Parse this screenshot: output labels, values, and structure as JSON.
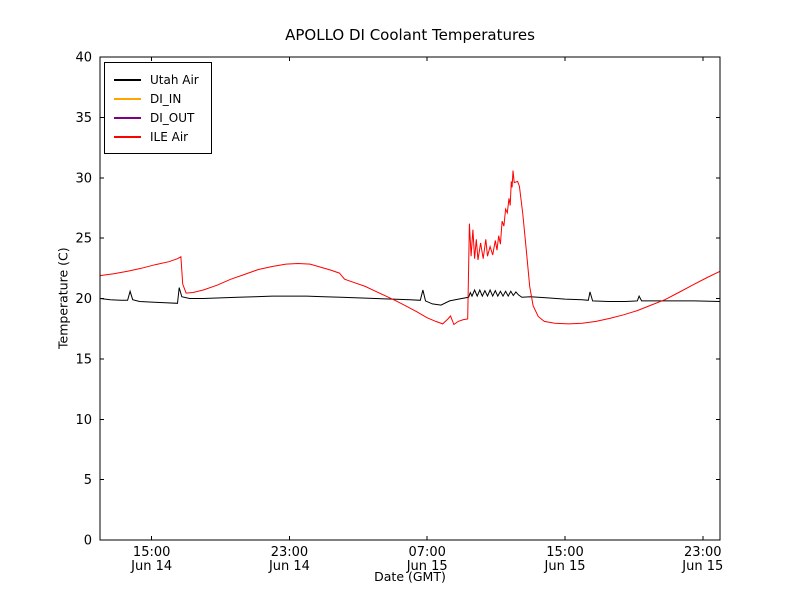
{
  "chart_data": {
    "type": "line",
    "title": "APOLLO DI Coolant Temperatures",
    "xlabel": "Date (GMT)",
    "ylabel": "Temperature (C)",
    "ylim": [
      0,
      40
    ],
    "xlim_hours": [
      0,
      36
    ],
    "grid": false,
    "legend_position": "upper left",
    "y_ticks": [
      0,
      5,
      10,
      15,
      20,
      25,
      30,
      35,
      40
    ],
    "x_ticks": [
      {
        "hours": 3,
        "time": "15:00",
        "date": "Jun 14"
      },
      {
        "hours": 11,
        "time": "23:00",
        "date": "Jun 14"
      },
      {
        "hours": 19,
        "time": "07:00",
        "date": "Jun 15"
      },
      {
        "hours": 27,
        "time": "15:00",
        "date": "Jun 15"
      },
      {
        "hours": 35,
        "time": "23:00",
        "date": "Jun 15"
      }
    ],
    "x_axis_note": "hours after Jun 14 12:00 GMT",
    "series": [
      {
        "name": "Utah Air",
        "color": "#000000",
        "points": [
          [
            0,
            20.0
          ],
          [
            0.6,
            19.9
          ],
          [
            1.2,
            19.85
          ],
          [
            1.6,
            19.85
          ],
          [
            1.75,
            20.6
          ],
          [
            1.9,
            19.9
          ],
          [
            2.3,
            19.75
          ],
          [
            3.0,
            19.7
          ],
          [
            3.8,
            19.65
          ],
          [
            4.5,
            19.6
          ],
          [
            4.6,
            20.9
          ],
          [
            4.75,
            20.15
          ],
          [
            5.2,
            20.0
          ],
          [
            6.0,
            20.0
          ],
          [
            7.0,
            20.05
          ],
          [
            8.0,
            20.1
          ],
          [
            9.0,
            20.15
          ],
          [
            10.0,
            20.2
          ],
          [
            11.0,
            20.2
          ],
          [
            12.0,
            20.2
          ],
          [
            13.0,
            20.15
          ],
          [
            14.0,
            20.1
          ],
          [
            15.0,
            20.05
          ],
          [
            16.0,
            20.0
          ],
          [
            17.0,
            19.95
          ],
          [
            18.0,
            19.9
          ],
          [
            18.6,
            19.85
          ],
          [
            18.75,
            20.7
          ],
          [
            18.9,
            19.8
          ],
          [
            19.3,
            19.55
          ],
          [
            19.8,
            19.45
          ],
          [
            20.3,
            19.8
          ],
          [
            21.0,
            20.0
          ],
          [
            21.4,
            20.1
          ],
          [
            21.5,
            20.5
          ],
          [
            21.6,
            20.2
          ],
          [
            21.75,
            20.7
          ],
          [
            21.9,
            20.2
          ],
          [
            22.05,
            20.7
          ],
          [
            22.2,
            20.2
          ],
          [
            22.35,
            20.65
          ],
          [
            22.5,
            20.2
          ],
          [
            22.65,
            20.7
          ],
          [
            22.8,
            20.2
          ],
          [
            22.95,
            20.65
          ],
          [
            23.1,
            20.2
          ],
          [
            23.25,
            20.6
          ],
          [
            23.4,
            20.2
          ],
          [
            23.55,
            20.6
          ],
          [
            23.7,
            20.2
          ],
          [
            23.85,
            20.6
          ],
          [
            24.0,
            20.25
          ],
          [
            24.15,
            20.55
          ],
          [
            24.3,
            20.3
          ],
          [
            24.5,
            20.1
          ],
          [
            25.0,
            20.15
          ],
          [
            26.0,
            20.05
          ],
          [
            27.0,
            19.95
          ],
          [
            28.0,
            19.9
          ],
          [
            28.35,
            19.85
          ],
          [
            28.45,
            20.55
          ],
          [
            28.6,
            19.8
          ],
          [
            29.5,
            19.75
          ],
          [
            30.5,
            19.75
          ],
          [
            31.2,
            19.8
          ],
          [
            31.3,
            20.2
          ],
          [
            31.45,
            19.8
          ],
          [
            32.5,
            19.8
          ],
          [
            33.5,
            19.8
          ],
          [
            34.5,
            19.8
          ],
          [
            36,
            19.75
          ]
        ]
      },
      {
        "name": "DI_IN",
        "color": "#ffa500",
        "points": []
      },
      {
        "name": "DI_OUT",
        "color": "#800080",
        "points": []
      },
      {
        "name": "ILE Air",
        "color": "#ff0000",
        "points": [
          [
            0,
            21.9
          ],
          [
            0.8,
            22.05
          ],
          [
            1.6,
            22.25
          ],
          [
            2.4,
            22.5
          ],
          [
            3.2,
            22.8
          ],
          [
            4.0,
            23.05
          ],
          [
            4.5,
            23.3
          ],
          [
            4.7,
            23.45
          ],
          [
            4.8,
            21.2
          ],
          [
            5.0,
            20.45
          ],
          [
            5.4,
            20.5
          ],
          [
            6.0,
            20.7
          ],
          [
            6.8,
            21.1
          ],
          [
            7.6,
            21.6
          ],
          [
            8.4,
            22.0
          ],
          [
            9.2,
            22.4
          ],
          [
            10.0,
            22.65
          ],
          [
            10.8,
            22.85
          ],
          [
            11.5,
            22.9
          ],
          [
            12.2,
            22.85
          ],
          [
            12.8,
            22.6
          ],
          [
            13.4,
            22.35
          ],
          [
            13.9,
            22.1
          ],
          [
            14.2,
            21.6
          ],
          [
            14.8,
            21.3
          ],
          [
            15.4,
            21.0
          ],
          [
            16.0,
            20.6
          ],
          [
            16.6,
            20.2
          ],
          [
            17.2,
            19.8
          ],
          [
            17.8,
            19.35
          ],
          [
            18.4,
            18.9
          ],
          [
            19.0,
            18.4
          ],
          [
            19.5,
            18.1
          ],
          [
            19.9,
            17.9
          ],
          [
            20.2,
            18.3
          ],
          [
            20.35,
            18.55
          ],
          [
            20.55,
            17.85
          ],
          [
            20.8,
            18.1
          ],
          [
            21.1,
            18.25
          ],
          [
            21.35,
            18.3
          ],
          [
            21.45,
            26.2
          ],
          [
            21.55,
            23.5
          ],
          [
            21.65,
            25.7
          ],
          [
            21.75,
            23.3
          ],
          [
            21.85,
            24.9
          ],
          [
            21.95,
            23.2
          ],
          [
            22.1,
            24.6
          ],
          [
            22.25,
            23.3
          ],
          [
            22.4,
            24.9
          ],
          [
            22.5,
            23.5
          ],
          [
            22.65,
            24.3
          ],
          [
            22.8,
            23.6
          ],
          [
            22.95,
            24.8
          ],
          [
            23.05,
            24.0
          ],
          [
            23.15,
            25.2
          ],
          [
            23.25,
            24.5
          ],
          [
            23.35,
            26.4
          ],
          [
            23.45,
            26.0
          ],
          [
            23.55,
            27.4
          ],
          [
            23.65,
            27.1
          ],
          [
            23.75,
            28.3
          ],
          [
            23.82,
            27.7
          ],
          [
            23.88,
            29.7
          ],
          [
            23.93,
            29.2
          ],
          [
            23.98,
            30.6
          ],
          [
            24.05,
            29.6
          ],
          [
            24.25,
            29.7
          ],
          [
            24.35,
            29.3
          ],
          [
            24.55,
            27.0
          ],
          [
            24.75,
            24.0
          ],
          [
            24.95,
            21.0
          ],
          [
            25.15,
            19.4
          ],
          [
            25.45,
            18.5
          ],
          [
            25.8,
            18.1
          ],
          [
            26.4,
            17.95
          ],
          [
            27.2,
            17.9
          ],
          [
            28.0,
            17.95
          ],
          [
            28.8,
            18.1
          ],
          [
            29.6,
            18.35
          ],
          [
            30.4,
            18.65
          ],
          [
            31.2,
            19.0
          ],
          [
            32.0,
            19.45
          ],
          [
            32.8,
            19.9
          ],
          [
            33.6,
            20.5
          ],
          [
            34.4,
            21.1
          ],
          [
            35.2,
            21.7
          ],
          [
            36,
            22.25
          ]
        ]
      }
    ]
  }
}
